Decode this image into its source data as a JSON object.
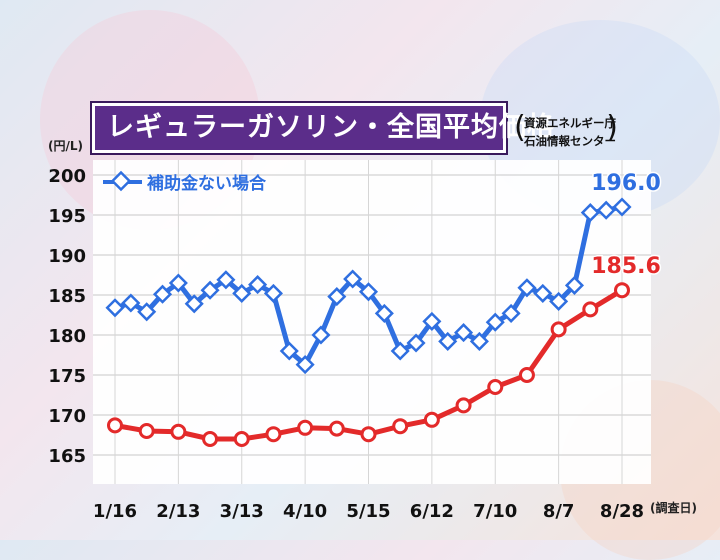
{
  "title": "レギュラーガソリン・全国平均価格",
  "source_lines": [
    "資源エネルギー庁",
    "石油情報センター"
  ],
  "unit_label": "(円/L)",
  "x_note": "(調査日)",
  "chart_data": {
    "type": "line",
    "ylim": [
      160,
      201
    ],
    "yticks": [
      165,
      170,
      175,
      180,
      185,
      190,
      195,
      200
    ],
    "x_tick_labels": [
      "1/16",
      "2/13",
      "3/13",
      "4/10",
      "5/15",
      "6/12",
      "7/10",
      "8/7",
      "8/28"
    ],
    "grid": true,
    "legend": "top-left",
    "series": [
      {
        "name": "補助金ない場合",
        "color": "#2f6fe0",
        "values": [
          183.4,
          184.0,
          182.9,
          185.1,
          186.5,
          183.9,
          185.6,
          186.9,
          185.2,
          186.3,
          185.2,
          178.0,
          176.3,
          180.0,
          184.8,
          187.0,
          185.4,
          182.7,
          178.0,
          179.0,
          181.7,
          179.2,
          180.3,
          179.2,
          181.6,
          182.7,
          185.9,
          185.2,
          184.2,
          186.2,
          195.3,
          195.6,
          196.0
        ],
        "end_label": "196.0"
      },
      {
        "name": "",
        "color": "#e32a2a",
        "values": [
          168.7,
          168.0,
          167.9,
          167.0,
          167.0,
          167.6,
          168.4,
          168.3,
          167.6,
          168.6,
          169.4,
          171.2,
          173.5,
          175.0,
          180.7,
          183.2,
          185.6
        ],
        "end_label": "185.6"
      }
    ]
  }
}
